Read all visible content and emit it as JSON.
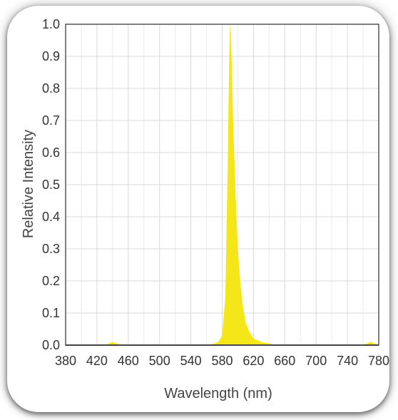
{
  "chart_data": {
    "type": "area",
    "title": "",
    "xlabel": "Wavelength (nm)",
    "ylabel": "Relative Intensity",
    "xlim": [
      380,
      780
    ],
    "ylim": [
      0.0,
      1.0
    ],
    "x_ticks": [
      "380",
      "420",
      "460",
      "500",
      "540",
      "580",
      "620",
      "660",
      "700",
      "740",
      "780"
    ],
    "y_ticks": [
      "0.0",
      "0.1",
      "0.2",
      "0.3",
      "0.4",
      "0.5",
      "0.6",
      "0.7",
      "0.8",
      "0.9",
      "1.0"
    ],
    "grid": true,
    "legend": "none",
    "series": [
      {
        "x": [
          380,
          430,
          440,
          450,
          560,
          570,
          575,
          580,
          584,
          587,
          589,
          590,
          591,
          592,
          594,
          597,
          600,
          603,
          606,
          610,
          615,
          620,
          630,
          640,
          650,
          700,
          760,
          770,
          780
        ],
        "y": [
          0.0,
          0.0,
          0.01,
          0.0,
          0.0,
          0.005,
          0.01,
          0.03,
          0.15,
          0.55,
          0.9,
          1.0,
          0.97,
          0.9,
          0.7,
          0.48,
          0.3,
          0.2,
          0.13,
          0.07,
          0.04,
          0.02,
          0.01,
          0.005,
          0.0,
          0.0,
          0.0,
          0.01,
          0.0
        ]
      }
    ],
    "colors": {
      "peak_gradient": [
        "#f5e61a",
        "#ffd21a",
        "#ffaa00",
        "#ff7a00",
        "#e85000"
      ],
      "grid": "#d9d9d9",
      "frame": "#555555",
      "baseline": "#1a1a1a"
    }
  }
}
